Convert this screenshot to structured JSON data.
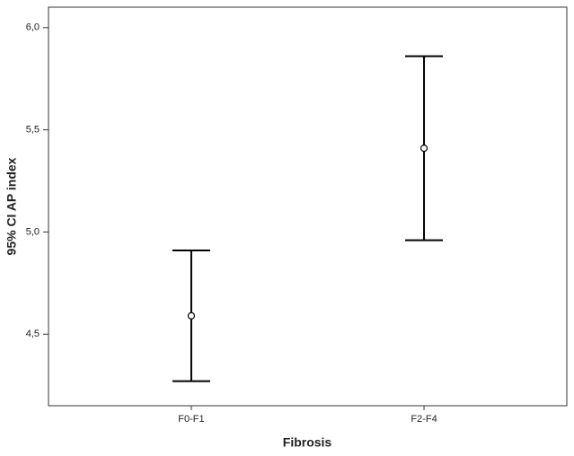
{
  "chart_data": {
    "type": "errorbar",
    "x_label": "Fibrosis",
    "y_label": "95% CI AP index",
    "categories": [
      "F0-F1",
      "F2-F4"
    ],
    "values": [
      4.59,
      5.41
    ],
    "errors": [
      0.32,
      0.45
    ],
    "color": "#000000",
    "ylim": [
      4.15,
      6.1
    ],
    "yticks": [
      {
        "value": 4.5,
        "label": "4,5"
      },
      {
        "value": 5.0,
        "label": "5,0"
      },
      {
        "value": 5.5,
        "label": "5,5"
      },
      {
        "value": 6.0,
        "label": "6,0"
      }
    ],
    "grid": false
  }
}
